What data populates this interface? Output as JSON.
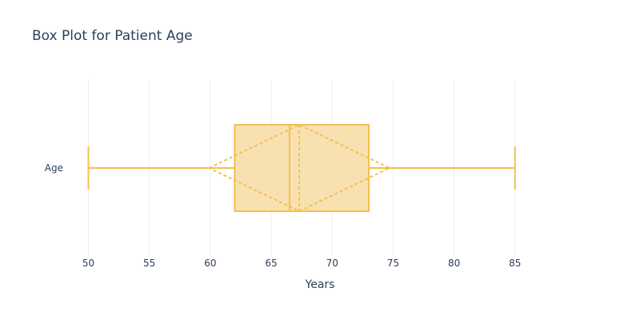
{
  "chart_data": {
    "type": "box",
    "title": "Box Plot for Patient Age",
    "xlabel": "Years",
    "ylabel": "",
    "orientation": "horizontal",
    "category": "Age",
    "color": "#f5bf4f",
    "fill_color": "#f8e1b1",
    "xlim": [
      48,
      90
    ],
    "xticks": [
      50,
      55,
      60,
      65,
      70,
      75,
      80,
      85
    ],
    "grid": true,
    "box": {
      "min": 50,
      "q1": 62,
      "median": 66.5,
      "q3": 73,
      "max": 85,
      "mean": 67.3,
      "sd": 7.4
    }
  }
}
